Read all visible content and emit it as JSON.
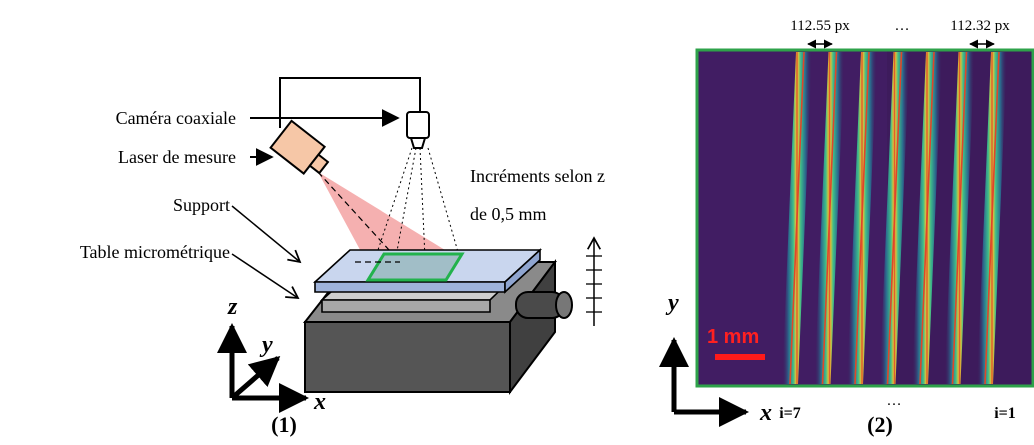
{
  "left_panel": {
    "labels": {
      "camera": "Caméra coaxiale",
      "laser": "Laser de mesure",
      "support": "Support",
      "table": "Table micrométrique",
      "increments_line1": "Incréments selon z",
      "increments_line2": "de 0,5 mm"
    },
    "axes": {
      "x": "x",
      "y": "y",
      "z": "z"
    },
    "panel_label": "(1)"
  },
  "right_panel": {
    "spacing_left": "112.55 px",
    "spacing_ellipsis": "…",
    "spacing_right": "112.32 px",
    "scale_bar": "1 mm",
    "index_left": "i=7",
    "index_ellipsis": "…",
    "index_right": "i=1",
    "axes": {
      "x": "x",
      "y": "y"
    },
    "panel_label": "(2)",
    "stripe_count": 7,
    "colors": {
      "background": "#3d1b5c",
      "frame": "#2ea24a",
      "stripe_core": "#e0462a",
      "stripe_glow": "#3fbf8a"
    }
  }
}
